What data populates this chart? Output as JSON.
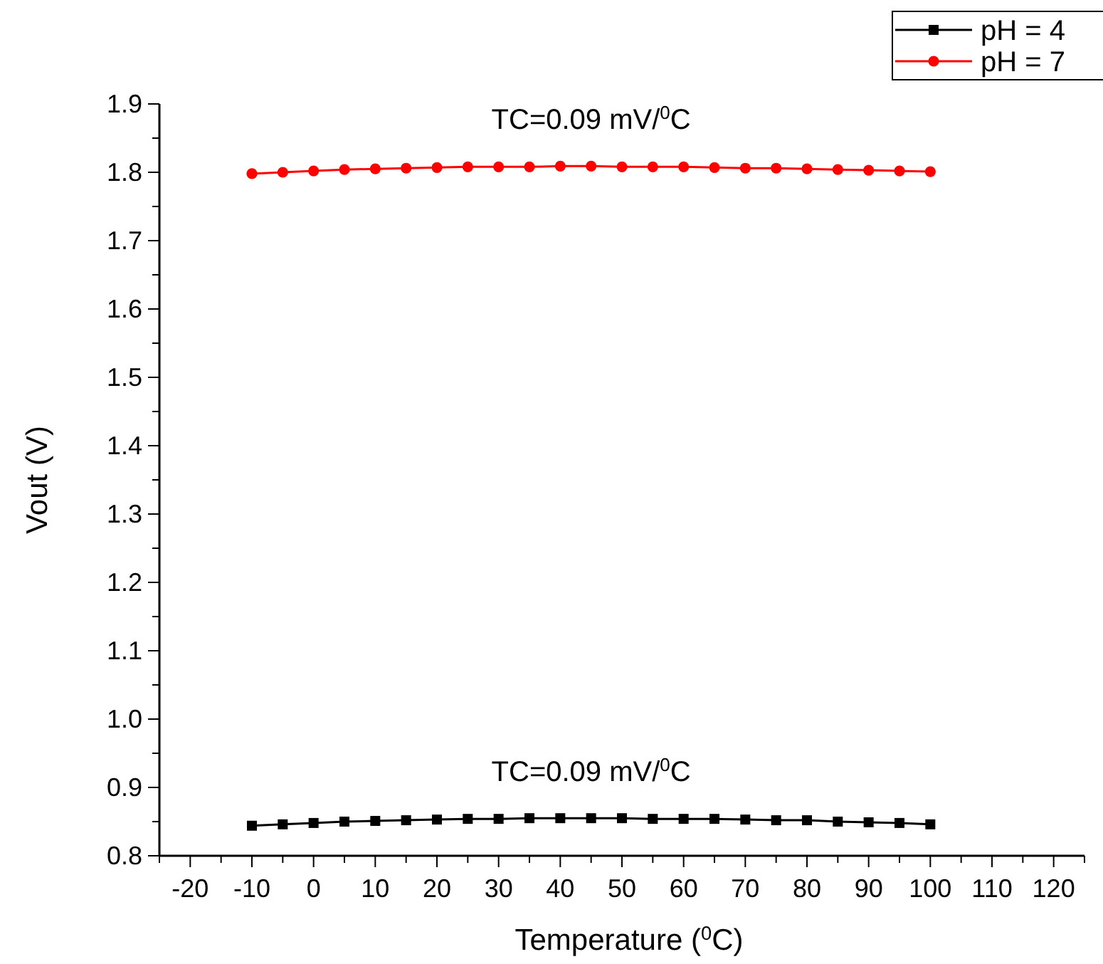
{
  "chart_data": {
    "type": "line",
    "xlabel": "Temperature ($^{0}$C)",
    "ylabel": "Vout (V)",
    "x": [
      -10,
      -5,
      0,
      5,
      10,
      15,
      20,
      25,
      30,
      35,
      40,
      45,
      50,
      55,
      60,
      65,
      70,
      75,
      80,
      85,
      90,
      95,
      100
    ],
    "series": [
      {
        "name": "pH = 4",
        "color": "#000000",
        "marker": "square",
        "values": [
          0.844,
          0.846,
          0.848,
          0.85,
          0.851,
          0.852,
          0.853,
          0.854,
          0.854,
          0.855,
          0.855,
          0.855,
          0.855,
          0.854,
          0.854,
          0.854,
          0.853,
          0.852,
          0.852,
          0.85,
          0.849,
          0.848,
          0.846
        ]
      },
      {
        "name": "pH = 7",
        "color": "#ff0000",
        "marker": "circle",
        "values": [
          1.798,
          1.8,
          1.802,
          1.804,
          1.805,
          1.806,
          1.807,
          1.808,
          1.808,
          1.808,
          1.809,
          1.809,
          1.808,
          1.808,
          1.808,
          1.807,
          1.806,
          1.806,
          1.805,
          1.804,
          1.803,
          1.802,
          1.801
        ]
      }
    ],
    "xlim": [
      -25,
      125
    ],
    "xticks": [
      {
        "value": -25,
        "label": null
      },
      -20,
      {
        "value": -15,
        "label": null
      },
      -10,
      {
        "value": -5,
        "label": null
      },
      0,
      {
        "value": 5,
        "label": null
      },
      10,
      {
        "value": 15,
        "label": null
      },
      20,
      {
        "value": 25,
        "label": null
      },
      30,
      {
        "value": 35,
        "label": null
      },
      40,
      {
        "value": 45,
        "label": null
      },
      50,
      {
        "value": 55,
        "label": null
      },
      60,
      {
        "value": 65,
        "label": null
      },
      70,
      {
        "value": 75,
        "label": null
      },
      80,
      {
        "value": 85,
        "label": null
      },
      90,
      {
        "value": 95,
        "label": null
      },
      100,
      {
        "value": 105,
        "label": null
      },
      110,
      {
        "value": 115,
        "label": null
      },
      120,
      {
        "value": 125,
        "label": null
      }
    ],
    "ylim": [
      0.8,
      1.9
    ],
    "yticks": [
      0.8,
      {
        "value": 0.85,
        "label": null
      },
      0.9,
      {
        "value": 0.95,
        "label": null
      },
      {
        "value": 1.0,
        "label": "1.0"
      },
      {
        "value": 1.05,
        "label": null
      },
      1.1,
      {
        "value": 1.15,
        "label": null
      },
      1.2,
      {
        "value": 1.25,
        "label": null
      },
      1.3,
      {
        "value": 1.35,
        "label": null
      },
      1.4,
      {
        "value": 1.45,
        "label": null
      },
      1.5,
      {
        "value": 1.55,
        "label": null
      },
      1.6,
      {
        "value": 1.65,
        "label": null
      },
      1.7,
      {
        "value": 1.75,
        "label": null
      },
      1.8,
      {
        "value": 1.85,
        "label": null
      },
      1.9
    ],
    "annotations": [
      "TC=0.09 mV/$^{0}$C",
      "TC=0.09 mV/$^{0}$C"
    ],
    "legend": "top right",
    "grid": false,
    "line_style": "solid"
  }
}
